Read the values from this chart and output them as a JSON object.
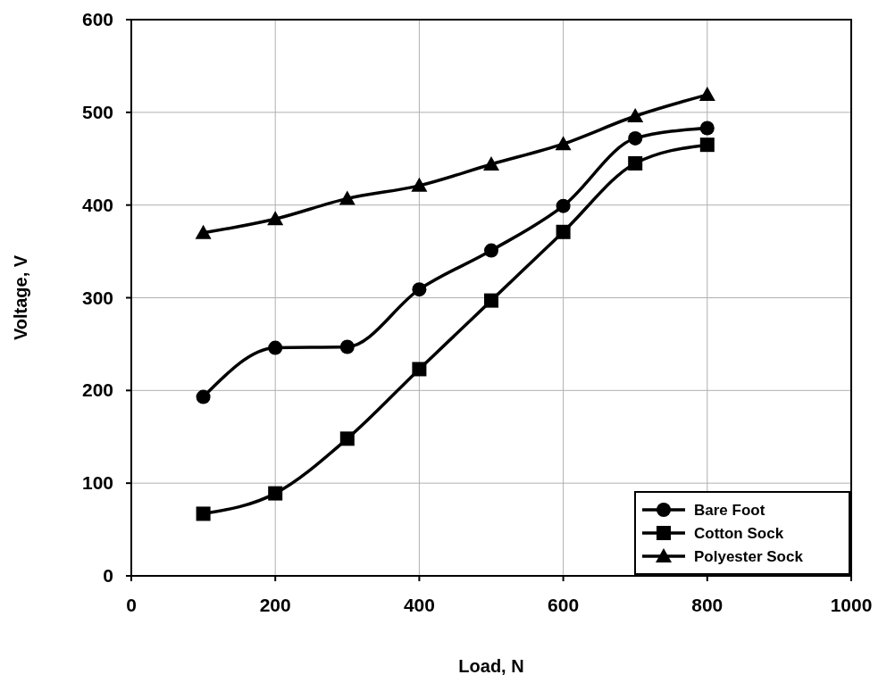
{
  "chart_data": {
    "type": "line",
    "xlabel": "Load, N",
    "ylabel": "Voltage, V",
    "x": [
      100,
      200,
      300,
      400,
      500,
      600,
      700,
      800
    ],
    "xlim": [
      0,
      1000
    ],
    "xticks": [
      0,
      200,
      400,
      600,
      800,
      1000
    ],
    "ylim": [
      0,
      600
    ],
    "yticks": [
      0,
      100,
      200,
      300,
      400,
      500,
      600
    ],
    "grid": true,
    "legend": "bottom right",
    "line_style": "solid",
    "series": [
      {
        "name": "Bare Foot",
        "color": "#000000",
        "marker": "circle",
        "values": [
          193,
          246,
          247,
          309,
          351,
          399,
          472,
          483
        ]
      },
      {
        "name": "Cotton Sock",
        "color": "#000000",
        "marker": "square",
        "values": [
          67,
          89,
          148,
          223,
          297,
          371,
          445,
          465
        ]
      },
      {
        "name": "Polyester Sock",
        "color": "#000000",
        "marker": "triangle",
        "values": [
          370,
          385,
          407,
          421,
          444,
          466,
          496,
          519
        ]
      }
    ]
  }
}
